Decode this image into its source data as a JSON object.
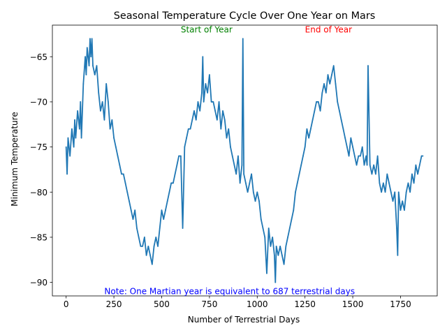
{
  "chart_data": {
    "type": "line",
    "title": "Seasonal Temperature Cycle Over One Year on Mars",
    "xlabel": "Number of Terrestrial Days",
    "ylabel": "Minimum Temperature",
    "xlim": [
      -72,
      1942
    ],
    "ylim": [
      -91.5,
      -61.5
    ],
    "xticks": [
      0,
      250,
      500,
      750,
      1000,
      1250,
      1500,
      1750
    ],
    "xtick_labels": [
      "0",
      "250",
      "500",
      "750",
      "1000",
      "1250",
      "1500",
      "1750"
    ],
    "yticks": [
      -90,
      -85,
      -80,
      -75,
      -70,
      -65
    ],
    "ytick_labels": [
      "−90",
      "−85",
      "−80",
      "−75",
      "−70",
      "−65"
    ],
    "grid": false,
    "legend": null,
    "series": [
      {
        "color": "#1f77b4",
        "x": [
          0,
          5,
          10,
          20,
          30,
          40,
          45,
          50,
          60,
          70,
          75,
          80,
          90,
          100,
          105,
          110,
          120,
          125,
          130,
          135,
          140,
          150,
          160,
          170,
          180,
          190,
          200,
          210,
          220,
          230,
          240,
          250,
          260,
          270,
          280,
          290,
          300,
          310,
          320,
          330,
          340,
          350,
          360,
          370,
          380,
          390,
          400,
          410,
          420,
          430,
          440,
          450,
          460,
          470,
          480,
          490,
          500,
          510,
          520,
          530,
          540,
          550,
          560,
          570,
          580,
          590,
          600,
          610,
          620,
          630,
          640,
          650,
          660,
          670,
          680,
          690,
          700,
          710,
          715,
          720,
          730,
          740,
          750,
          760,
          770,
          780,
          790,
          800,
          810,
          820,
          830,
          840,
          850,
          860,
          870,
          880,
          890,
          900,
          910,
          920,
          925,
          930,
          940,
          950,
          960,
          970,
          980,
          990,
          1000,
          1010,
          1020,
          1030,
          1040,
          1050,
          1060,
          1070,
          1080,
          1090,
          1095,
          1100,
          1110,
          1120,
          1130,
          1140,
          1150,
          1160,
          1170,
          1180,
          1190,
          1200,
          1210,
          1220,
          1230,
          1240,
          1250,
          1260,
          1270,
          1280,
          1290,
          1300,
          1310,
          1320,
          1330,
          1340,
          1350,
          1360,
          1370,
          1380,
          1390,
          1400,
          1410,
          1420,
          1430,
          1440,
          1450,
          1460,
          1470,
          1480,
          1490,
          1500,
          1510,
          1520,
          1530,
          1540,
          1550,
          1560,
          1570,
          1575,
          1580,
          1590,
          1600,
          1610,
          1620,
          1630,
          1640,
          1650,
          1660,
          1670,
          1680,
          1690,
          1700,
          1710,
          1720,
          1730,
          1735,
          1740,
          1750,
          1760,
          1770,
          1780,
          1790,
          1800,
          1810,
          1820,
          1830,
          1840,
          1850,
          1860,
          1867
        ],
        "y": [
          -75,
          -78,
          -74,
          -76,
          -73,
          -75,
          -72,
          -74,
          -71,
          -73,
          -70,
          -74,
          -68,
          -65,
          -67,
          -64,
          -66,
          -63,
          -65,
          -63,
          -66,
          -67,
          -66,
          -69,
          -71,
          -70,
          -72,
          -68,
          -70,
          -73,
          -72,
          -74,
          -75,
          -76,
          -77,
          -78,
          -78,
          -79,
          -80,
          -81,
          -82,
          -83,
          -82,
          -84,
          -85,
          -86,
          -86,
          -85,
          -87,
          -86,
          -87,
          -88,
          -86,
          -85,
          -86,
          -84,
          -82,
          -83,
          -82,
          -81,
          -80,
          -79,
          -79,
          -78,
          -77,
          -76,
          -76,
          -84,
          -75,
          -74,
          -73,
          -73,
          -72,
          -71,
          -72,
          -70,
          -71,
          -69,
          -65,
          -70,
          -68,
          -69,
          -67,
          -70,
          -70,
          -71,
          -72,
          -70,
          -73,
          -71,
          -72,
          -74,
          -73,
          -75,
          -76,
          -77,
          -78,
          -76,
          -79,
          -77,
          -63,
          -78,
          -79,
          -80,
          -79,
          -78,
          -80,
          -81,
          -80,
          -81,
          -83,
          -84,
          -85,
          -89,
          -84,
          -86,
          -85,
          -87,
          -90,
          -86,
          -87,
          -86,
          -87,
          -88,
          -86,
          -85,
          -84,
          -83,
          -82,
          -80,
          -79,
          -78,
          -77,
          -76,
          -75,
          -73,
          -74,
          -73,
          -72,
          -71,
          -70,
          -70,
          -71,
          -69,
          -68,
          -69,
          -67,
          -68,
          -67,
          -66,
          -68,
          -70,
          -71,
          -72,
          -73,
          -74,
          -75,
          -76,
          -74,
          -75,
          -76,
          -77,
          -76,
          -76,
          -75,
          -77,
          -76,
          -77,
          -66,
          -77,
          -78,
          -77,
          -78,
          -76,
          -79,
          -80,
          -79,
          -80,
          -78,
          -79,
          -80,
          -81,
          -80,
          -84,
          -87,
          -80,
          -82,
          -81,
          -82,
          -80,
          -79,
          -80,
          -78,
          -79,
          -77,
          -78,
          -77,
          -76,
          -76
        ]
      }
    ],
    "annotations": [
      {
        "text": "Start of Year",
        "x": 600,
        "y": -62,
        "color": "#008000"
      },
      {
        "text": "End of Year",
        "x": 1250,
        "y": -62,
        "color": "#ff0000"
      },
      {
        "text": "Note: One Martian year is equivalent to 687 terrestrial days",
        "x": 200,
        "y": -91,
        "color": "#0000ff"
      }
    ]
  }
}
